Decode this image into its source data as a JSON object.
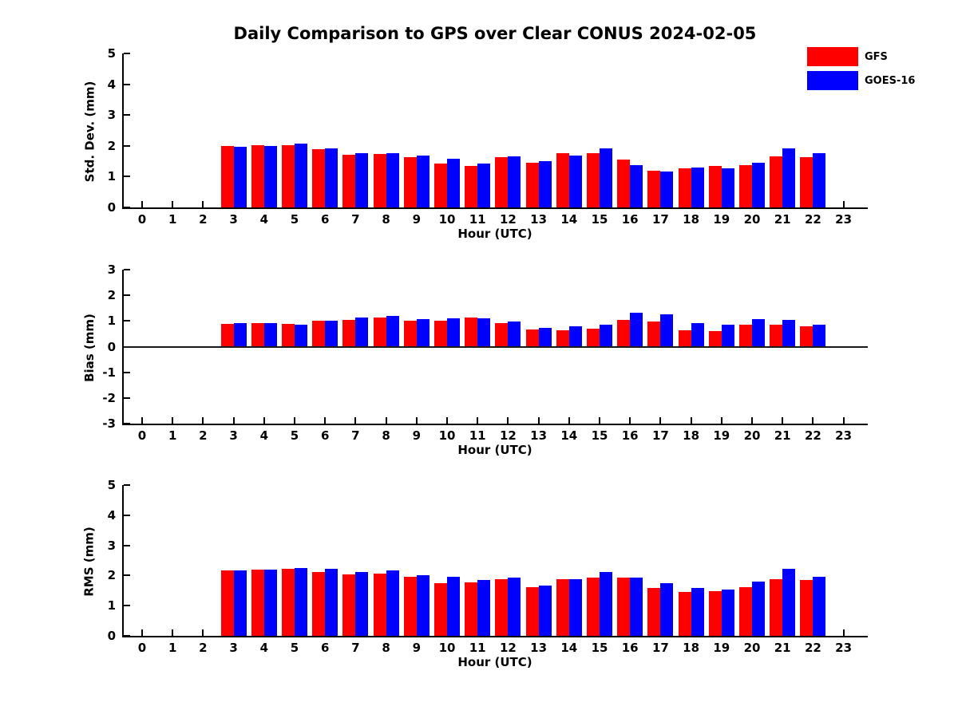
{
  "title": "Daily Comparison to GPS over Clear CONUS 2024-02-05",
  "legend": {
    "items": [
      {
        "label": "GFS",
        "color": "#ff0000"
      },
      {
        "label": "GOES-16",
        "color": "#0000ff"
      }
    ]
  },
  "chart_data": [
    {
      "type": "bar",
      "title": "",
      "ylabel": "Std. Dev. (mm)",
      "xlabel": "Hour (UTC)",
      "ylim": [
        0,
        5
      ],
      "yticks": [
        0,
        1,
        2,
        3,
        4,
        5
      ],
      "grid": false,
      "legend_position": "top-right",
      "categories": [
        "0",
        "1",
        "2",
        "3",
        "4",
        "5",
        "6",
        "7",
        "8",
        "9",
        "10",
        "11",
        "12",
        "13",
        "14",
        "15",
        "16",
        "17",
        "18",
        "19",
        "20",
        "21",
        "22",
        "23"
      ],
      "series": [
        {
          "name": "GFS",
          "color": "#ff0000",
          "values": [
            null,
            null,
            null,
            2.0,
            2.02,
            2.02,
            1.88,
            1.7,
            1.74,
            1.62,
            1.43,
            1.34,
            1.62,
            1.46,
            1.76,
            1.76,
            1.55,
            1.19,
            1.28,
            1.34,
            1.37,
            1.66,
            1.64,
            null
          ]
        },
        {
          "name": "GOES-16",
          "color": "#0000ff",
          "values": [
            null,
            null,
            null,
            1.97,
            2.0,
            2.08,
            1.93,
            1.76,
            1.76,
            1.68,
            1.57,
            1.42,
            1.65,
            1.5,
            1.69,
            1.91,
            1.37,
            1.16,
            1.3,
            1.26,
            1.45,
            1.93,
            1.75,
            null
          ]
        }
      ]
    },
    {
      "type": "bar",
      "title": "",
      "ylabel": "Bias (mm)",
      "xlabel": "Hour (UTC)",
      "ylim": [
        -3,
        3
      ],
      "yticks": [
        -3,
        -2,
        -1,
        0,
        1,
        2,
        3
      ],
      "zero_line": true,
      "grid": false,
      "categories": [
        "0",
        "1",
        "2",
        "3",
        "4",
        "5",
        "6",
        "7",
        "8",
        "9",
        "10",
        "11",
        "12",
        "13",
        "14",
        "15",
        "16",
        "17",
        "18",
        "19",
        "20",
        "21",
        "22",
        "23"
      ],
      "series": [
        {
          "name": "GFS",
          "color": "#ff0000",
          "values": [
            null,
            null,
            null,
            0.9,
            0.92,
            0.88,
            1.0,
            1.05,
            1.12,
            1.02,
            1.02,
            1.13,
            0.93,
            0.66,
            0.65,
            0.69,
            1.03,
            0.97,
            0.63,
            0.6,
            0.84,
            0.84,
            0.8,
            null
          ]
        },
        {
          "name": "GOES-16",
          "color": "#0000ff",
          "values": [
            null,
            null,
            null,
            0.93,
            0.92,
            0.85,
            1.01,
            1.14,
            1.2,
            1.06,
            1.09,
            1.11,
            0.97,
            0.73,
            0.8,
            0.85,
            1.32,
            1.26,
            0.93,
            0.86,
            1.06,
            1.05,
            0.86,
            null
          ]
        }
      ]
    },
    {
      "type": "bar",
      "title": "",
      "ylabel": "RMS (mm)",
      "xlabel": "Hour (UTC)",
      "ylim": [
        0,
        5
      ],
      "yticks": [
        0,
        1,
        2,
        3,
        4,
        5
      ],
      "grid": false,
      "categories": [
        "0",
        "1",
        "2",
        "3",
        "4",
        "5",
        "6",
        "7",
        "8",
        "9",
        "10",
        "11",
        "12",
        "13",
        "14",
        "15",
        "16",
        "17",
        "18",
        "19",
        "20",
        "21",
        "22",
        "23"
      ],
      "series": [
        {
          "name": "GFS",
          "color": "#ff0000",
          "values": [
            null,
            null,
            null,
            2.18,
            2.2,
            2.21,
            2.11,
            2.03,
            2.07,
            1.95,
            1.75,
            1.78,
            1.89,
            1.61,
            1.89,
            1.93,
            1.92,
            1.58,
            1.45,
            1.49,
            1.61,
            1.89,
            1.85,
            null
          ]
        },
        {
          "name": "GOES-16",
          "color": "#0000ff",
          "values": [
            null,
            null,
            null,
            2.18,
            2.2,
            2.24,
            2.21,
            2.11,
            2.18,
            2.0,
            1.97,
            1.86,
            1.93,
            1.66,
            1.89,
            2.11,
            1.94,
            1.75,
            1.58,
            1.54,
            1.79,
            2.22,
            1.97,
            null
          ]
        }
      ]
    }
  ]
}
